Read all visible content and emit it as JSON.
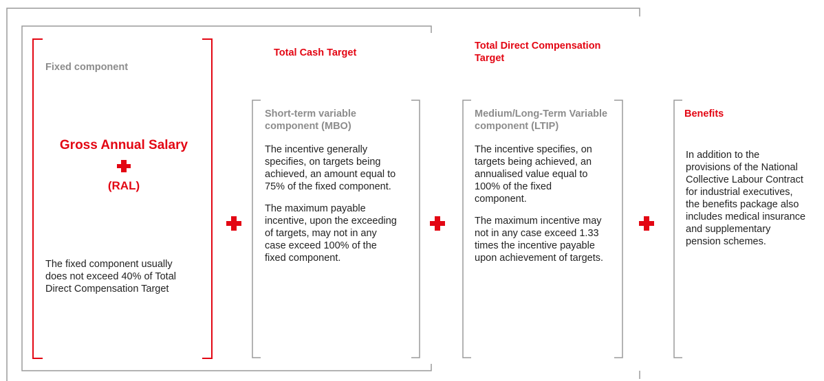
{
  "groups": [
    "Total Cash Target",
    "Total Direct Compensation Target"
  ],
  "columns": [
    {
      "heading": "Fixed component",
      "highlight": "Gross Annual Salary",
      "highlight_note": "(RAL)",
      "paragraphs": [
        "The fixed component usually does not exceed 40% of Total Direct Compensation Target"
      ]
    },
    {
      "heading": "Short-term variable component  (MBO)",
      "paragraphs": [
        "The incentive generally specifies, on targets being achieved, an amount equal to 75% of the fixed component.",
        "The maximum payable incentive, upon the exceeding of targets, may not in any case exceed 100% of the fixed component."
      ]
    },
    {
      "heading": "Medium/Long-Term Variable component (LTIP)",
      "paragraphs": [
        "The incentive specifies, on targets being achieved, an annualised value equal to 100% of the fixed component.",
        "The maximum incentive may not in any case exceed 1.33 times the incentive payable upon achievement of targets."
      ]
    },
    {
      "heading": "Benefits",
      "paragraphs": [
        "In addition to the provisions of the National Collective Labour Contract for industrial executives, the benefits package also includes medical insurance and supplementary pension schemes."
      ]
    }
  ]
}
